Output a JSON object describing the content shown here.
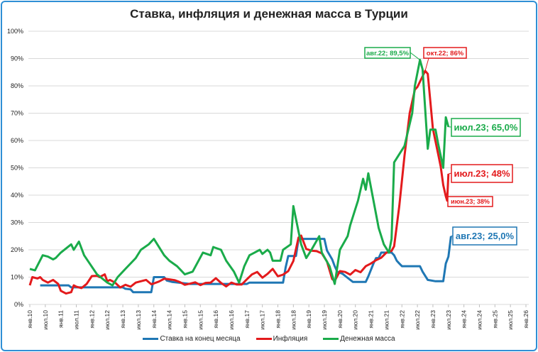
{
  "chart_data": {
    "type": "line",
    "title": "Ставка, инфляция и денежная масса в Турции",
    "xlabel": "",
    "ylabel": "",
    "x_unit": "months since янв.10",
    "xlim": [
      0,
      192
    ],
    "ylim": [
      0,
      100
    ],
    "y_ticks": [
      "0%",
      "10%",
      "20%",
      "30%",
      "40%",
      "50%",
      "60%",
      "70%",
      "80%",
      "90%",
      "100%"
    ],
    "x_tick_labels": [
      "янв.10",
      "июл.10",
      "янв.11",
      "июл.11",
      "янв.12",
      "июл.12",
      "янв.13",
      "июл.13",
      "янв.14",
      "июл.14",
      "янв.15",
      "июл.15",
      "янв.16",
      "июл.16",
      "янв.17",
      "июл.17",
      "янв.18",
      "июл.18",
      "янв.19",
      "июл.19",
      "янв.20",
      "июл.20",
      "янв.21",
      "июл.21",
      "янв.22",
      "июл.22",
      "янв.23",
      "июл.23",
      "янв.24",
      "июл.24",
      "янв.25",
      "июл.25",
      "янв.26"
    ],
    "grid": true,
    "legend_position": "bottom",
    "series": [
      {
        "name": "Ставка на конец месяца",
        "color": "#1f77b4",
        "points": [
          [
            4,
            7
          ],
          [
            15,
            7
          ],
          [
            16,
            6.25
          ],
          [
            36,
            6.25
          ],
          [
            37,
            5.75
          ],
          [
            39,
            5.5
          ],
          [
            40,
            4.5
          ],
          [
            47,
            4.5
          ],
          [
            48,
            10
          ],
          [
            52,
            10
          ],
          [
            53,
            8.75
          ],
          [
            55,
            8.25
          ],
          [
            60,
            7.75
          ],
          [
            62,
            7.5
          ],
          [
            84,
            7.5
          ],
          [
            85,
            8
          ],
          [
            98,
            8
          ],
          [
            99,
            13.5
          ],
          [
            100,
            17.75
          ],
          [
            103,
            17.75
          ],
          [
            104,
            24
          ],
          [
            114,
            24
          ],
          [
            115,
            19.75
          ],
          [
            117,
            16.5
          ],
          [
            118,
            14
          ],
          [
            119,
            12
          ],
          [
            121,
            11.25
          ],
          [
            123,
            9.75
          ],
          [
            125,
            8.25
          ],
          [
            130,
            8.25
          ],
          [
            131,
            10.25
          ],
          [
            133,
            15
          ],
          [
            134,
            17
          ],
          [
            135,
            17
          ],
          [
            136,
            19
          ],
          [
            140,
            19
          ],
          [
            141,
            18
          ],
          [
            142,
            16
          ],
          [
            143,
            15
          ],
          [
            144,
            14
          ],
          [
            151,
            14
          ],
          [
            152,
            12
          ],
          [
            153,
            10.5
          ],
          [
            154,
            9
          ],
          [
            157,
            8.5
          ],
          [
            160,
            8.5
          ],
          [
            161,
            15
          ],
          [
            162,
            17.5
          ],
          [
            163,
            25
          ]
        ]
      },
      {
        "name": "Инфляция",
        "color": "#e31a1c",
        "points": [
          [
            0,
            7
          ],
          [
            1,
            10
          ],
          [
            3,
            9.5
          ],
          [
            4,
            10
          ],
          [
            5,
            9
          ],
          [
            7,
            8
          ],
          [
            9,
            9
          ],
          [
            11,
            7.5
          ],
          [
            12,
            5
          ],
          [
            14,
            4
          ],
          [
            16,
            4.5
          ],
          [
            17,
            7
          ],
          [
            18,
            6.5
          ],
          [
            20,
            6
          ],
          [
            22,
            7.5
          ],
          [
            24,
            10.4
          ],
          [
            26,
            10.5
          ],
          [
            27,
            10
          ],
          [
            29,
            11
          ],
          [
            30,
            8.5
          ],
          [
            31,
            9
          ],
          [
            33,
            8
          ],
          [
            35,
            6.2
          ],
          [
            37,
            7.2
          ],
          [
            39,
            6.5
          ],
          [
            41,
            8
          ],
          [
            43,
            8.5
          ],
          [
            45,
            9
          ],
          [
            47,
            7.4
          ],
          [
            48,
            7.7
          ],
          [
            50,
            8.4
          ],
          [
            52,
            9.4
          ],
          [
            54,
            9.2
          ],
          [
            56,
            8.9
          ],
          [
            58,
            8.2
          ],
          [
            60,
            7.2
          ],
          [
            62,
            7.6
          ],
          [
            64,
            8.1
          ],
          [
            66,
            7.1
          ],
          [
            68,
            7.9
          ],
          [
            70,
            8
          ],
          [
            72,
            9.6
          ],
          [
            74,
            7.9
          ],
          [
            76,
            6.6
          ],
          [
            78,
            8
          ],
          [
            80,
            7.3
          ],
          [
            82,
            7.3
          ],
          [
            84,
            9.2
          ],
          [
            86,
            11
          ],
          [
            88,
            11.9
          ],
          [
            90,
            9.8
          ],
          [
            92,
            11.2
          ],
          [
            94,
            13
          ],
          [
            96,
            10.3
          ],
          [
            98,
            10.9
          ],
          [
            100,
            12.2
          ],
          [
            102,
            15.9
          ],
          [
            104,
            24.5
          ],
          [
            105,
            25.2
          ],
          [
            107,
            20.3
          ],
          [
            109,
            19.7
          ],
          [
            111,
            19.5
          ],
          [
            113,
            18.7
          ],
          [
            115,
            15.7
          ],
          [
            117,
            9.3
          ],
          [
            118,
            8.6
          ],
          [
            120,
            12.2
          ],
          [
            122,
            11.9
          ],
          [
            124,
            10.9
          ],
          [
            126,
            12.6
          ],
          [
            128,
            11.8
          ],
          [
            130,
            14
          ],
          [
            132,
            15
          ],
          [
            134,
            16.2
          ],
          [
            136,
            17.1
          ],
          [
            138,
            19
          ],
          [
            140,
            19.6
          ],
          [
            141,
            21.3
          ],
          [
            143,
            36.1
          ],
          [
            145,
            54.4
          ],
          [
            147,
            70
          ],
          [
            149,
            78.6
          ],
          [
            150,
            79.6
          ],
          [
            152,
            83.5
          ],
          [
            153,
            85.5
          ],
          [
            154,
            84.4
          ],
          [
            156,
            64.3
          ],
          [
            158,
            55.2
          ],
          [
            159,
            50.5
          ],
          [
            160,
            43.7
          ],
          [
            161,
            39.6
          ],
          [
            161.5,
            38
          ],
          [
            162,
            47.8
          ]
        ]
      },
      {
        "name": "Денежная масса",
        "color": "#1aab4a",
        "points": [
          [
            0,
            13
          ],
          [
            2,
            12.5
          ],
          [
            5,
            18
          ],
          [
            7,
            17.5
          ],
          [
            9,
            16.5
          ],
          [
            10,
            17
          ],
          [
            12,
            19
          ],
          [
            16,
            22
          ],
          [
            17,
            20
          ],
          [
            19,
            23
          ],
          [
            21,
            18
          ],
          [
            26,
            11
          ],
          [
            30,
            8
          ],
          [
            32,
            7
          ],
          [
            34,
            10
          ],
          [
            37,
            13
          ],
          [
            41,
            17
          ],
          [
            43,
            20
          ],
          [
            46,
            22
          ],
          [
            48,
            24
          ],
          [
            52,
            18
          ],
          [
            54,
            16
          ],
          [
            57,
            14
          ],
          [
            60,
            11
          ],
          [
            63,
            12
          ],
          [
            67,
            19
          ],
          [
            70,
            18
          ],
          [
            71,
            21
          ],
          [
            74,
            20
          ],
          [
            76,
            16
          ],
          [
            79,
            12
          ],
          [
            81,
            8
          ],
          [
            83,
            14
          ],
          [
            85,
            18
          ],
          [
            87,
            19
          ],
          [
            89,
            20
          ],
          [
            90,
            18.5
          ],
          [
            92,
            20
          ],
          [
            93,
            19
          ],
          [
            94,
            16
          ],
          [
            97,
            16
          ],
          [
            98,
            20
          ],
          [
            101,
            22
          ],
          [
            102,
            36
          ],
          [
            105,
            22
          ],
          [
            107,
            17
          ],
          [
            109,
            20
          ],
          [
            112,
            25
          ],
          [
            113,
            19
          ],
          [
            116,
            14
          ],
          [
            118,
            7.5
          ],
          [
            120,
            20
          ],
          [
            123,
            25
          ],
          [
            124,
            29
          ],
          [
            126,
            35
          ],
          [
            127,
            38
          ],
          [
            129,
            46
          ],
          [
            130,
            42
          ],
          [
            131,
            48
          ],
          [
            133,
            38
          ],
          [
            135,
            28
          ],
          [
            137,
            22
          ],
          [
            139,
            19
          ],
          [
            140,
            24
          ],
          [
            141,
            52
          ],
          [
            145,
            58
          ],
          [
            148,
            70
          ],
          [
            149,
            80
          ],
          [
            151,
            89.5
          ],
          [
            152,
            86
          ],
          [
            154,
            57
          ],
          [
            155,
            64
          ],
          [
            157,
            64
          ],
          [
            158,
            59
          ],
          [
            160,
            50
          ],
          [
            161,
            68.5
          ],
          [
            162,
            65
          ]
        ]
      }
    ],
    "annotations": [
      {
        "key": "m2_peak",
        "text": "авг.22; 89,5%",
        "series": 2,
        "x": 151,
        "y": 89.5
      },
      {
        "key": "infl_peak",
        "text": "окт.22; 86%",
        "series": 1,
        "x": 153,
        "y": 85.5
      },
      {
        "key": "m2_last",
        "text": "июл.23; 65,0%",
        "series": 2,
        "x": 162,
        "y": 65
      },
      {
        "key": "infl_last",
        "text": "июл.23; 48%",
        "series": 1,
        "x": 162,
        "y": 47.8
      },
      {
        "key": "infl_jun",
        "text": "июн.23; 38%",
        "series": 1,
        "x": 161.5,
        "y": 38
      },
      {
        "key": "rate_last",
        "text": "авг.23; 25,0%",
        "series": 0,
        "x": 163,
        "y": 25
      }
    ]
  }
}
